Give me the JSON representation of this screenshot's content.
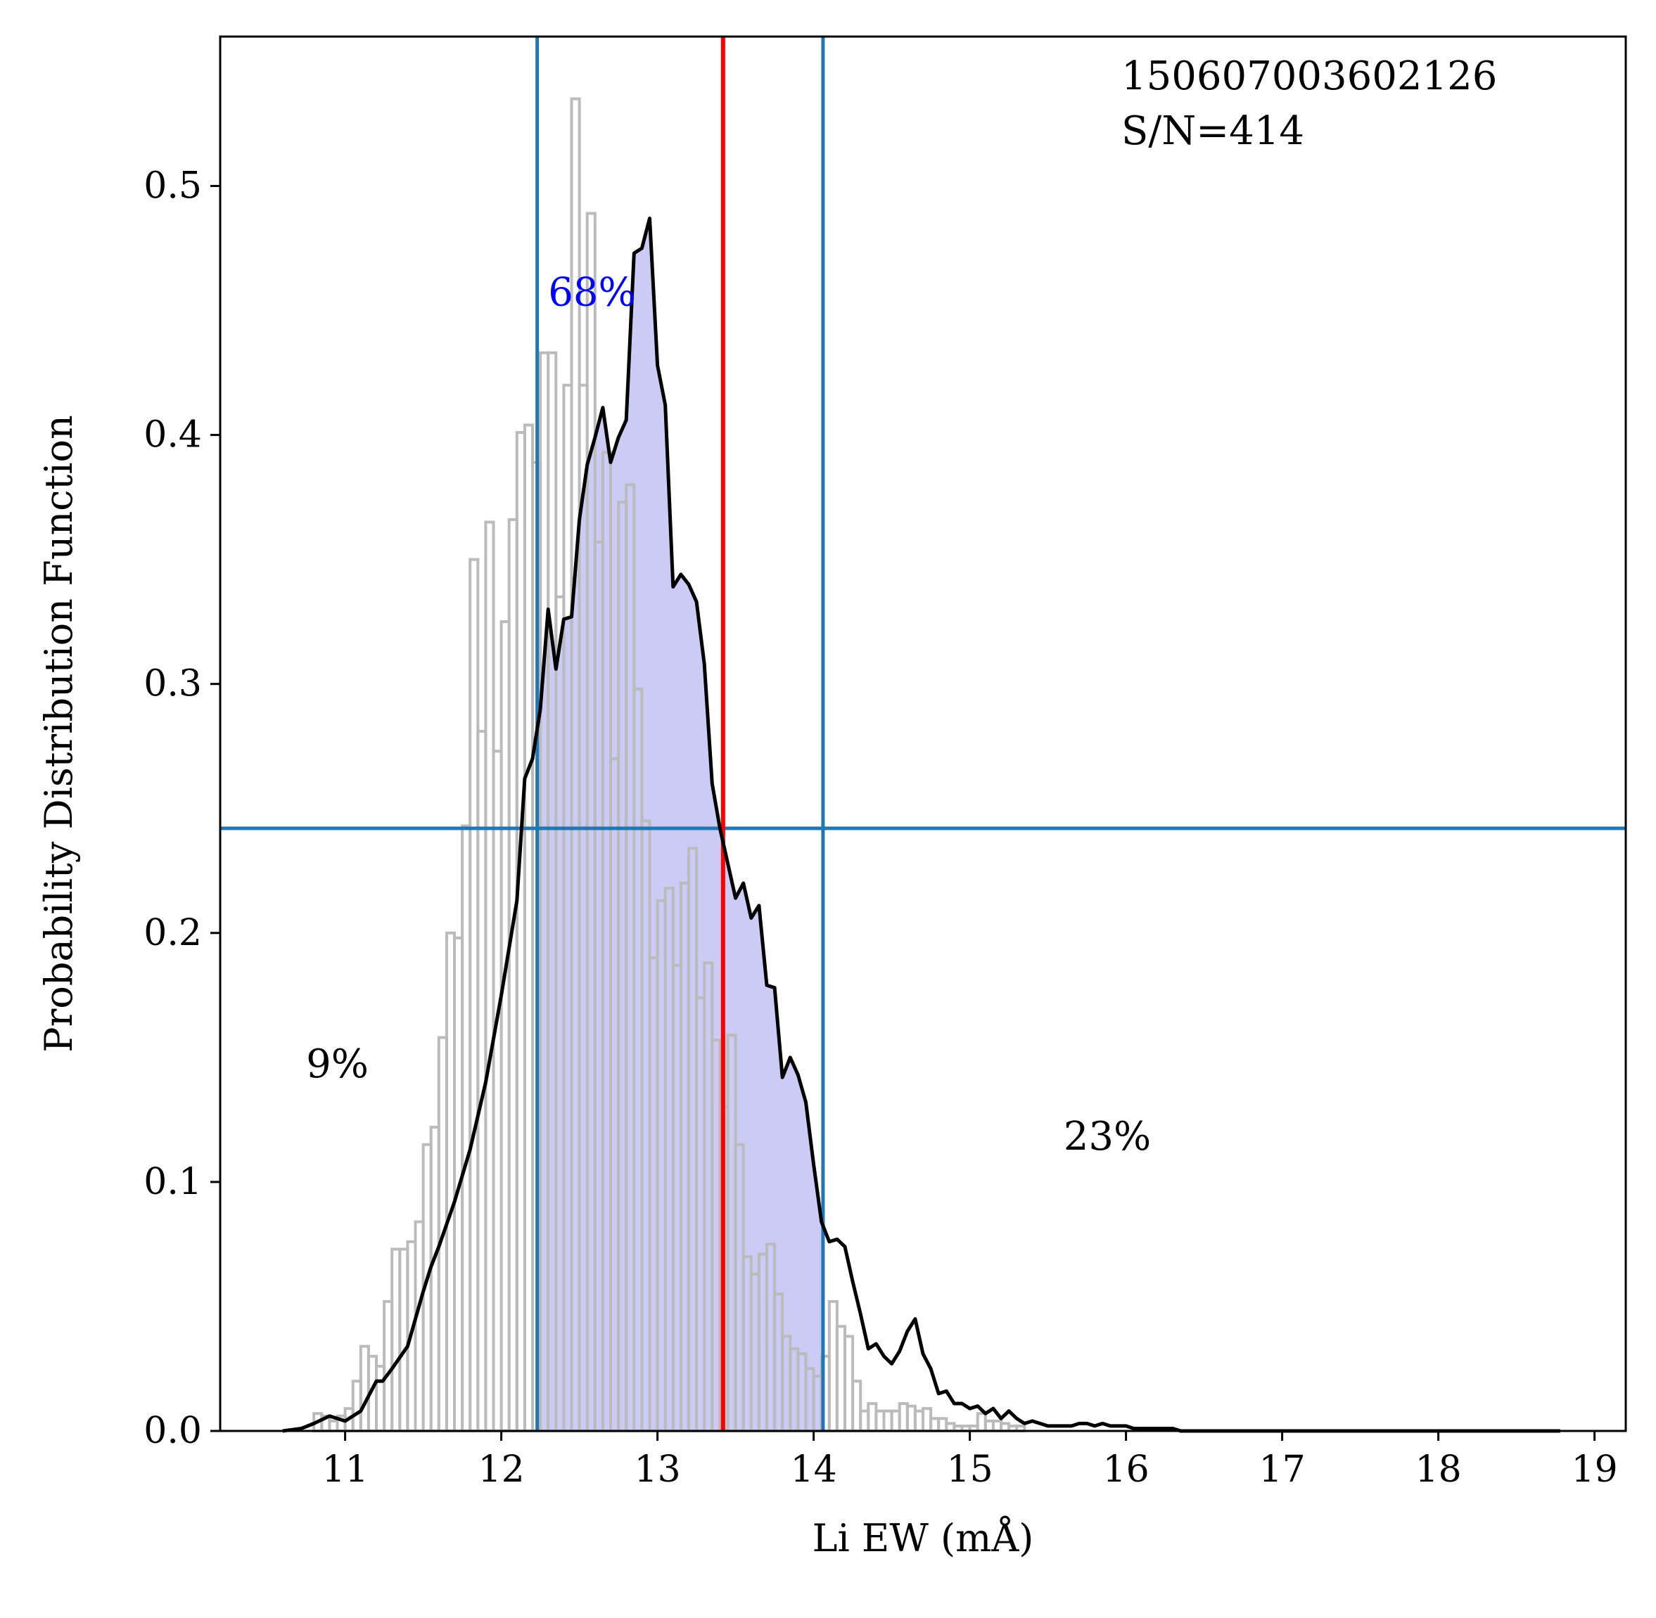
{
  "chart_data": {
    "type": "histogram",
    "title": "",
    "xlabel": "Li EW (mÅ)",
    "ylabel": "Probability Distribution Function",
    "xlim": [
      10.2,
      19.2
    ],
    "ylim": [
      0.0,
      0.56
    ],
    "xticks": [
      11,
      12,
      13,
      14,
      15,
      16,
      17,
      18,
      19
    ],
    "yticks": [
      0.0,
      0.1,
      0.2,
      0.3,
      0.4,
      0.5
    ],
    "ytick_labels": [
      "0.0",
      "0.1",
      "0.2",
      "0.3",
      "0.4",
      "0.5"
    ],
    "annotation": {
      "star_id": "150607003602126",
      "snr": "S/N=414"
    },
    "region_labels": {
      "central": "68%",
      "left": "9%",
      "right": "23%",
      "central_pos": [
        12.3,
        0.452
      ],
      "left_pos": [
        10.75,
        0.142
      ],
      "right_pos": [
        15.6,
        0.113
      ]
    },
    "interval": {
      "lower": 12.23,
      "upper": 14.06,
      "threshold": 0.242
    },
    "median": 13.42,
    "colors": {
      "interval_lines": "#1f77b4",
      "median_line": "#ff0000",
      "pdf_curve": "#000000",
      "fill": "#c8c8f5",
      "hist_edge": "#bbbbbb",
      "central_label": "#0000ff"
    },
    "histogram": {
      "bin_edges_start": 10.8,
      "bin_width": 0.05,
      "heights": [
        0.007,
        0.006,
        0.004,
        0.006,
        0.009,
        0.02,
        0.034,
        0.03,
        0.026,
        0.052,
        0.073,
        0.073,
        0.076,
        0.084,
        0.115,
        0.122,
        0.158,
        0.2,
        0.198,
        0.243,
        0.35,
        0.281,
        0.365,
        0.273,
        0.325,
        0.366,
        0.401,
        0.404,
        0.389,
        0.433,
        0.433,
        0.335,
        0.42,
        0.535,
        0.42,
        0.489,
        0.357,
        0.393,
        0.27,
        0.373,
        0.38,
        0.298,
        0.245,
        0.19,
        0.213,
        0.218,
        0.187,
        0.22,
        0.234,
        0.174,
        0.188,
        0.157,
        0.13,
        0.159,
        0.115,
        0.07,
        0.063,
        0.071,
        0.075,
        0.055,
        0.038,
        0.033,
        0.031,
        0.025,
        0.022,
        0.03,
        0.052,
        0.042,
        0.038,
        0.02,
        0.008,
        0.011,
        0.008,
        0.008,
        0.008,
        0.011,
        0.01,
        0.008,
        0.009,
        0.005,
        0.005,
        0.003,
        0.002,
        0.002,
        0.002,
        0.007,
        0.004,
        0.004,
        0.003,
        0.002,
        0.002
      ]
    },
    "pdf": {
      "x": [
        10.6,
        10.72,
        10.8,
        10.9,
        11.0,
        11.1,
        11.2,
        11.24,
        11.3,
        11.4,
        11.5,
        11.55,
        11.6,
        11.7,
        11.8,
        11.9,
        12.0,
        12.1,
        12.15,
        12.2,
        12.25,
        12.3,
        12.35,
        12.4,
        12.45,
        12.5,
        12.55,
        12.6,
        12.65,
        12.7,
        12.75,
        12.8,
        12.85,
        12.9,
        12.95,
        13.0,
        13.05,
        13.1,
        13.15,
        13.2,
        13.25,
        13.3,
        13.35,
        13.4,
        13.45,
        13.5,
        13.55,
        13.6,
        13.65,
        13.7,
        13.75,
        13.8,
        13.85,
        13.9,
        13.95,
        14.0,
        14.05,
        14.1,
        14.15,
        14.2,
        14.25,
        14.3,
        14.35,
        14.4,
        14.45,
        14.5,
        14.55,
        14.6,
        14.65,
        14.7,
        14.75,
        14.8,
        14.85,
        14.9,
        14.95,
        15.0,
        15.05,
        15.1,
        15.15,
        15.2,
        15.25,
        15.3,
        15.35,
        15.4,
        15.45,
        15.5,
        15.55,
        15.6,
        15.65,
        15.7,
        15.75,
        15.8,
        15.85,
        15.9,
        15.95,
        16.0,
        16.05,
        16.1,
        16.15,
        16.2,
        16.25,
        16.3,
        16.35,
        16.4,
        16.45,
        16.5,
        16.55,
        16.6,
        16.65,
        16.7,
        16.75,
        16.8,
        16.85,
        16.9,
        16.95,
        17.0,
        17.1,
        17.2,
        17.3,
        17.4,
        17.5,
        17.6,
        17.7,
        17.8,
        17.9,
        18.0,
        18.2,
        18.4,
        18.6,
        18.78
      ],
      "y": [
        0.0,
        0.001,
        0.003,
        0.006,
        0.004,
        0.008,
        0.02,
        0.02,
        0.025,
        0.034,
        0.056,
        0.066,
        0.074,
        0.092,
        0.113,
        0.14,
        0.175,
        0.213,
        0.262,
        0.27,
        0.29,
        0.33,
        0.306,
        0.326,
        0.327,
        0.366,
        0.388,
        0.399,
        0.411,
        0.389,
        0.399,
        0.406,
        0.473,
        0.475,
        0.487,
        0.428,
        0.412,
        0.339,
        0.344,
        0.34,
        0.333,
        0.308,
        0.26,
        0.242,
        0.228,
        0.214,
        0.22,
        0.206,
        0.211,
        0.179,
        0.178,
        0.142,
        0.15,
        0.143,
        0.132,
        0.107,
        0.084,
        0.076,
        0.077,
        0.074,
        0.06,
        0.047,
        0.033,
        0.035,
        0.03,
        0.027,
        0.032,
        0.04,
        0.045,
        0.031,
        0.025,
        0.015,
        0.016,
        0.011,
        0.011,
        0.009,
        0.01,
        0.007,
        0.009,
        0.005,
        0.008,
        0.005,
        0.003,
        0.004,
        0.003,
        0.002,
        0.002,
        0.002,
        0.002,
        0.003,
        0.003,
        0.002,
        0.003,
        0.002,
        0.002,
        0.002,
        0.001,
        0.001,
        0.001,
        0.001,
        0.001,
        0.001,
        0.0,
        0.0,
        0.0,
        0.0,
        0.0,
        0.0,
        0.0,
        0.0,
        0.0,
        0.0,
        0.0,
        0.0,
        0.0,
        0.0,
        0.0,
        0.0,
        0.0,
        0.0,
        0.0,
        0.0,
        0.0,
        0.0,
        0.0,
        0.0,
        0.0,
        0.0,
        0.0,
        0.0
      ]
    }
  }
}
